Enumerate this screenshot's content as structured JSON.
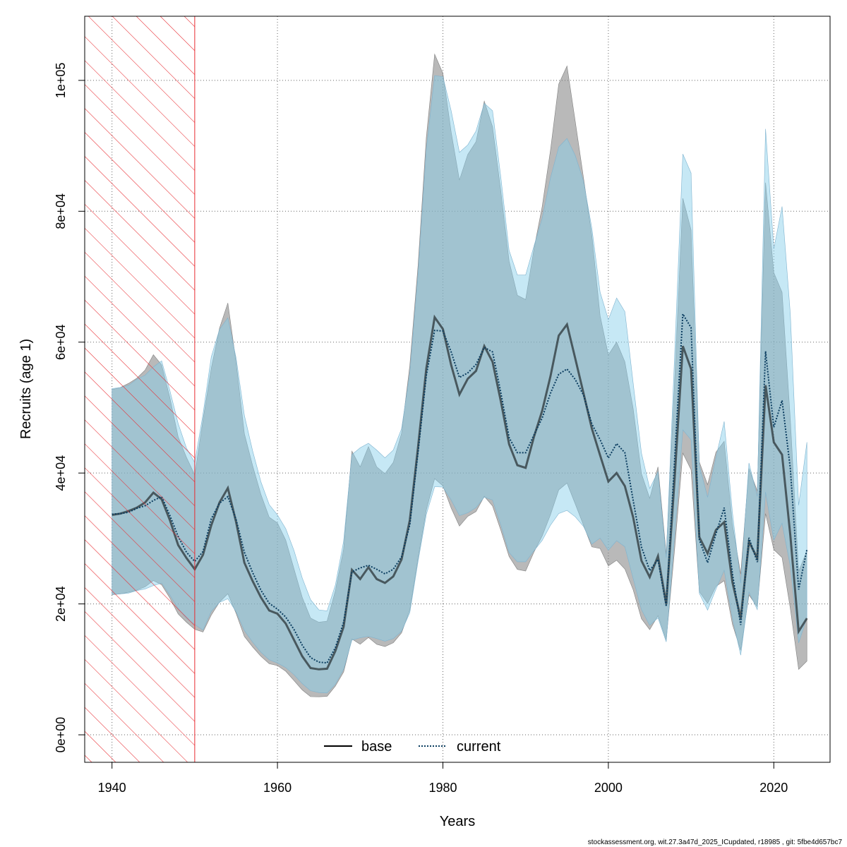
{
  "chart_data": {
    "type": "line",
    "xlabel": "Years",
    "ylabel": "Recruits (age 1)",
    "xlim": [
      1936.7,
      2026.8
    ],
    "ylim": [
      -4200,
      109800
    ],
    "x_ticks": [
      1940,
      1960,
      1980,
      2000,
      2020
    ],
    "x_tick_labels": [
      "1940",
      "1960",
      "1980",
      "2000",
      "2020"
    ],
    "y_ticks": [
      0,
      20000,
      40000,
      60000,
      80000,
      100000
    ],
    "y_tick_labels": [
      "0e+00",
      "2e+04",
      "4e+04",
      "6e+04",
      "8e+04",
      "1e+05"
    ],
    "grid": true,
    "legend": {
      "placement": "bottom-center",
      "entries": [
        "base",
        "current"
      ]
    },
    "hatched_region": {
      "x_from": 1936.7,
      "x_to": 1950,
      "color": "#e8292f"
    },
    "colors": {
      "base_line": "#000000",
      "base_band": "#808080",
      "current_line": "#0b3d60",
      "current_band": "#87ceeb",
      "grid": "#666666"
    },
    "years": [
      1940,
      1941,
      1942,
      1943,
      1944,
      1945,
      1946,
      1947,
      1948,
      1949,
      1950,
      1951,
      1952,
      1953,
      1954,
      1955,
      1956,
      1957,
      1958,
      1959,
      1960,
      1961,
      1962,
      1963,
      1964,
      1965,
      1966,
      1967,
      1968,
      1969,
      1970,
      1971,
      1972,
      1973,
      1974,
      1975,
      1976,
      1977,
      1978,
      1979,
      1980,
      1981,
      1982,
      1983,
      1984,
      1985,
      1986,
      1987,
      1988,
      1989,
      1990,
      1991,
      1992,
      1993,
      1994,
      1995,
      1996,
      1997,
      1998,
      1999,
      2000,
      2001,
      2002,
      2003,
      2004,
      2005,
      2006,
      2007,
      2008,
      2009,
      2010,
      2011,
      2012,
      2013,
      2014,
      2015,
      2016,
      2017,
      2018,
      2019,
      2020,
      2021,
      2022,
      2023,
      2024
    ],
    "series": [
      {
        "name": "base",
        "values": [
          33600,
          33800,
          34200,
          34700,
          35500,
          37000,
          36000,
          32800,
          29000,
          27000,
          25300,
          27500,
          32000,
          35500,
          37700,
          32500,
          26300,
          23500,
          21000,
          19000,
          18500,
          17000,
          14500,
          12000,
          10200,
          10000,
          10100,
          12800,
          16500,
          25200,
          23800,
          25600,
          23800,
          23200,
          24200,
          26800,
          32800,
          44000,
          56000,
          63800,
          62000,
          56500,
          52000,
          54400,
          55600,
          59400,
          57000,
          51000,
          44400,
          41200,
          40800,
          45500,
          49500,
          54800,
          61000,
          62700,
          57500,
          52200,
          46800,
          42700,
          38700,
          40000,
          38000,
          33200,
          26600,
          24100,
          27300,
          20000,
          39000,
          59400,
          55900,
          30200,
          27700,
          31300,
          32500,
          23300,
          17800,
          29500,
          27000,
          53400,
          44700,
          42800,
          30500,
          15800,
          17800
        ]
      },
      {
        "name": "current",
        "values": [
          33700,
          33800,
          34000,
          34600,
          35000,
          35800,
          36400,
          33500,
          30300,
          27900,
          26500,
          28000,
          33000,
          35400,
          36400,
          32900,
          27900,
          24800,
          22100,
          20100,
          19200,
          18000,
          16100,
          13700,
          11800,
          11100,
          11000,
          13300,
          17200,
          24900,
          25500,
          25900,
          25300,
          24600,
          25300,
          27200,
          32100,
          43200,
          54900,
          61800,
          61700,
          58500,
          54600,
          55300,
          56600,
          59200,
          58500,
          52300,
          45400,
          43100,
          43100,
          45800,
          48400,
          52200,
          55100,
          55900,
          54300,
          51900,
          47500,
          45100,
          42300,
          44500,
          43100,
          35800,
          28700,
          25100,
          26800,
          19600,
          41900,
          64300,
          62200,
          29800,
          26300,
          30700,
          34700,
          24600,
          16800,
          30100,
          26400,
          58600,
          47000,
          51100,
          40700,
          22200,
          28300
        ]
      }
    ],
    "footer": "stockassessment.org, wit.27.3a47d_2025_ICupdated, r18985 , git: 5fbe4d657bc7"
  }
}
